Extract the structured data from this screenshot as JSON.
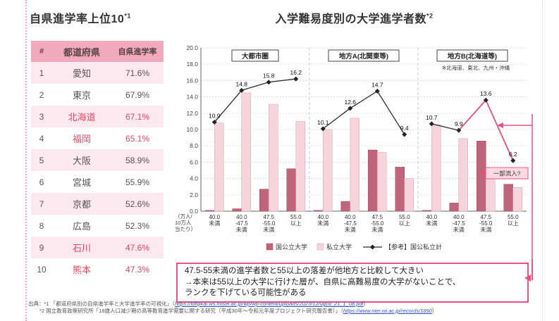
{
  "colors": {
    "accent": "#e8537e",
    "bar_national": "#c0647b",
    "bar_private": "#f5d4db",
    "table_header_bg": "#f1a9be",
    "table_row_alt_bg": "#fce8ee",
    "highlight_text": "#e24a63",
    "line": "#2b2b2b"
  },
  "table": {
    "title": "自県進学率上位10",
    "title_sup": "*1",
    "columns": [
      "#",
      "都道府県",
      "自県進学率"
    ],
    "rows": [
      {
        "rank": "1",
        "pref": "愛知",
        "rate": "71.6%",
        "highlight": false
      },
      {
        "rank": "2",
        "pref": "東京",
        "rate": "67.9%",
        "highlight": false
      },
      {
        "rank": "3",
        "pref": "北海道",
        "rate": "67.1%",
        "highlight": true
      },
      {
        "rank": "4",
        "pref": "福岡",
        "rate": "65.1%",
        "highlight": true
      },
      {
        "rank": "5",
        "pref": "大阪",
        "rate": "58.9%",
        "highlight": false
      },
      {
        "rank": "6",
        "pref": "宮城",
        "rate": "55.9%",
        "highlight": false
      },
      {
        "rank": "7",
        "pref": "京都",
        "rate": "52.6%",
        "highlight": false
      },
      {
        "rank": "8",
        "pref": "広島",
        "rate": "52.3%",
        "highlight": false
      },
      {
        "rank": "9",
        "pref": "石川",
        "rate": "47.6%",
        "highlight": true
      },
      {
        "rank": "10",
        "pref": "熊本",
        "rate": "47.3%",
        "highlight": true
      }
    ]
  },
  "chart_data": {
    "type": "bar+line",
    "title": "入学難易度別の大学進学者数",
    "title_sup": "*2",
    "region_note": "※北海道、東北、九州・沖縄",
    "y_unit_lines": [
      "（万人/",
      "10万人",
      "当たり）"
    ],
    "ylim": [
      0,
      20
    ],
    "ytick_step": 2,
    "grid": true,
    "legend_position": "bottom",
    "categories": [
      "40.0未満",
      "40.0-47.5未満",
      "47.5-55.0未満",
      "55.0以上"
    ],
    "category_label_lines": [
      [
        "40.0",
        "未満"
      ],
      [
        "40.0",
        "-47.5",
        "未満"
      ],
      [
        "47.5",
        "-55.0",
        "未満"
      ],
      [
        "55.0",
        "以上"
      ]
    ],
    "groups": [
      {
        "label": "大都市圏",
        "series": {
          "national_public": [
            0.1,
            0.3,
            2.7,
            5.2
          ],
          "private": [
            10.8,
            14.5,
            13.1,
            11.0
          ],
          "total": [
            10.9,
            14.8,
            15.8,
            16.2
          ]
        }
      },
      {
        "label": "地方A(北関東等)",
        "series": {
          "national_public": [
            0.1,
            1.2,
            7.5,
            5.4
          ],
          "private": [
            10.0,
            11.4,
            7.2,
            4.0
          ],
          "total": [
            10.1,
            12.6,
            14.7,
            9.4
          ]
        }
      },
      {
        "label": "地方B(北海道等)",
        "series": {
          "national_public": [
            0.1,
            1.0,
            8.6,
            3.3
          ],
          "private": [
            10.6,
            8.9,
            5.0,
            2.9
          ],
          "total": [
            10.7,
            9.9,
            13.6,
            6.2
          ]
        }
      }
    ],
    "legend": [
      {
        "label": "国公立大学",
        "marker": "bar"
      },
      {
        "label": "私立大学",
        "marker": "bar"
      },
      {
        "label": "【参考】国公私立計",
        "marker": "line-diamond"
      }
    ],
    "callout": "一部流入?"
  },
  "annotation": {
    "lines": [
      "47.5-55未満の進学者数と55以上の落差が他地方と比較して大きい",
      "→本来は55以上の大学に行けた層が、自県に高難易度の大学がないことで、",
      "ランクを下げている可能性がある"
    ]
  },
  "footnotes": {
    "line1_pre": "出典：*1 「都道府県別の自県進学率と大学進学率の可視化」（",
    "line1_url": "https://tdfqikai.ws.hosei.ac.jp/wp/wp-content/uploads/2023/12/ugcd_21_1_08.pdf",
    "line1_suf": "）",
    "line2_pre": "*2 国立教育政策研究所「18歳人口減少期の高等教育進学需要に関する研究（平成30年～令和元年度プロジェクト研究報告書）」（",
    "line2_url": "https://www.nier.nii.ac.jp/records/1890",
    "line2_suf": "）"
  }
}
